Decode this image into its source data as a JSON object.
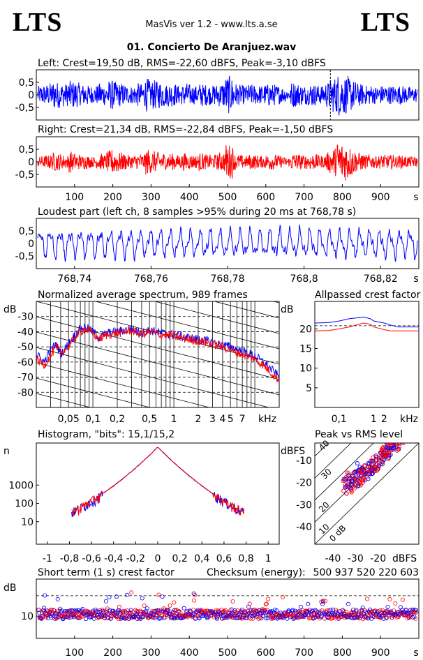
{
  "header": {
    "logo_left": "LTS",
    "logo_right": "LTS",
    "app_title": "MasVis ver 1.2 - www.lts.a.se",
    "file_title": "01. Concierto De Aranjuez.wav"
  },
  "colors": {
    "left": "#0000ff",
    "right": "#ff0000",
    "axis": "#000000"
  },
  "chart_data": [
    {
      "type": "line",
      "id": "left-waveform",
      "title": "Left: Crest=19,50 dB, RMS=-22,60 dBFS, Peak=-3,10 dBFS",
      "yticks": [
        "0,5",
        "0",
        "-0,5"
      ],
      "ylim": [
        -1,
        1
      ],
      "xlim": [
        0,
        1000
      ],
      "marker_x": 768.78,
      "envelope": [
        0.38,
        0.42,
        0.45,
        0.5,
        0.62,
        0.55,
        0.5,
        0.48,
        0.6,
        0.58,
        0.52,
        0.45,
        0.5,
        0.4,
        0.35,
        0.42,
        0.5,
        0.45,
        0.6,
        0.62,
        0.55,
        0.5,
        0.48,
        0.4,
        0.38,
        0.42,
        0.5,
        0.45,
        0.7,
        0.6,
        0.62,
        0.58,
        0.55,
        0.45,
        0.5,
        0.48,
        0.4,
        0.42,
        0.5,
        0.45,
        0.4,
        0.38,
        0.5,
        0.45,
        0.42,
        0.4,
        0.45,
        0.5,
        0.55,
        0.8,
        0.75,
        0.5,
        0.42,
        0.4,
        0.38,
        0.45,
        0.42,
        0.4,
        0.38,
        0.45,
        0.5,
        0.45,
        0.4,
        0.35,
        0.3,
        0.25,
        0.55,
        0.5,
        0.45,
        0.4,
        0.42,
        0.5,
        0.45,
        0.4,
        0.38,
        0.55,
        0.65,
        0.75,
        0.9,
        0.85,
        0.8,
        0.7,
        0.6,
        0.5,
        0.45,
        0.4,
        0.42,
        0.38,
        0.35,
        0.4,
        0.42,
        0.38,
        0.4,
        0.35,
        0.4,
        0.38,
        0.35,
        0.3,
        0.32,
        0.3
      ]
    },
    {
      "type": "line",
      "id": "right-waveform",
      "title": "Right: Crest=21,34 dB, RMS=-22,84 dBFS, Peak=-1,50 dBFS",
      "yticks": [
        "0,5",
        "0",
        "-0,5"
      ],
      "ylim": [
        -1,
        1
      ],
      "xlim": [
        0,
        1000
      ],
      "xticks": [
        "100",
        "200",
        "300",
        "400",
        "500",
        "600",
        "700",
        "800",
        "900"
      ],
      "xunit": "s",
      "envelope": [
        0.22,
        0.25,
        0.28,
        0.32,
        0.4,
        0.35,
        0.3,
        0.28,
        0.45,
        0.38,
        0.32,
        0.28,
        0.3,
        0.25,
        0.22,
        0.28,
        0.35,
        0.3,
        0.45,
        0.55,
        0.48,
        0.4,
        0.35,
        0.3,
        0.28,
        0.3,
        0.38,
        0.32,
        0.55,
        0.48,
        0.45,
        0.42,
        0.4,
        0.32,
        0.38,
        0.35,
        0.28,
        0.3,
        0.38,
        0.32,
        0.3,
        0.28,
        0.38,
        0.32,
        0.3,
        0.28,
        0.32,
        0.38,
        0.42,
        0.75,
        0.7,
        0.35,
        0.3,
        0.28,
        0.25,
        0.32,
        0.3,
        0.28,
        0.25,
        0.3,
        0.35,
        0.32,
        0.28,
        0.25,
        0.2,
        0.18,
        0.38,
        0.35,
        0.32,
        0.28,
        0.3,
        0.35,
        0.32,
        0.28,
        0.25,
        0.4,
        0.5,
        0.6,
        0.9,
        0.85,
        0.8,
        0.65,
        0.5,
        0.4,
        0.35,
        0.3,
        0.32,
        0.28,
        0.25,
        0.28,
        0.3,
        0.28,
        0.3,
        0.25,
        0.28,
        0.26,
        0.25,
        0.22,
        0.22,
        0.2
      ]
    },
    {
      "type": "line",
      "id": "loudest-part",
      "title": "Loudest part (left  ch, 8 samples >95% during 20 ms at 768,78 s)",
      "yticks": [
        "0,5",
        "0",
        "-0,5"
      ],
      "ylim": [
        -1,
        1
      ],
      "xlim": [
        768.73,
        768.83
      ],
      "xticks": [
        "768,74",
        "768,76",
        "768,78",
        "768,8",
        "768,82"
      ],
      "xunit": "s"
    },
    {
      "type": "line",
      "id": "average-spectrum",
      "title": "Normalized average spectrum, 989 frames",
      "yunit": "dB",
      "yticks": [
        "-30",
        "-40",
        "-50",
        "-60",
        "-70",
        "-80"
      ],
      "ylim": [
        -90,
        -20
      ],
      "xlim": [
        0.02,
        20
      ],
      "xscale": "log",
      "xticks": [
        "0,05",
        "0,1",
        "0,2",
        "0,5",
        "1",
        "2",
        "3",
        "4",
        "5",
        "7"
      ],
      "xunit": "kHz",
      "series": [
        {
          "x": [
            0.02,
            0.025,
            0.03,
            0.035,
            0.04,
            0.05,
            0.06,
            0.07,
            0.08,
            0.1,
            0.12,
            0.15,
            0.2,
            0.25,
            0.3,
            0.4,
            0.5,
            0.7,
            1,
            1.5,
            2,
            3,
            4,
            5,
            7,
            10,
            14,
            20
          ],
          "values": [
            -55,
            -60,
            -52,
            -48,
            -55,
            -48,
            -42,
            -38,
            -37,
            -40,
            -44,
            -41,
            -40,
            -39,
            -38,
            -41,
            -39,
            -41,
            -42,
            -44,
            -45,
            -47,
            -49,
            -50,
            -53,
            -56,
            -62,
            -70
          ]
        },
        {
          "x": [
            0.02,
            0.025,
            0.03,
            0.035,
            0.04,
            0.05,
            0.06,
            0.07,
            0.08,
            0.1,
            0.12,
            0.15,
            0.2,
            0.25,
            0.3,
            0.4,
            0.5,
            0.7,
            1,
            1.5,
            2,
            3,
            4,
            5,
            7,
            10,
            14,
            20
          ],
          "values": [
            -58,
            -62,
            -56,
            -50,
            -54,
            -50,
            -44,
            -40,
            -38,
            -41,
            -45,
            -42,
            -41,
            -40,
            -39,
            -42,
            -40,
            -42,
            -43,
            -45,
            -46,
            -48,
            -50,
            -52,
            -55,
            -58,
            -64,
            -72
          ]
        }
      ]
    },
    {
      "type": "line",
      "id": "allpassed-crest",
      "title": "Allpassed crest factor",
      "yunit": "dB",
      "yticks": [
        "20",
        "15",
        "10",
        "5"
      ],
      "ylim": [
        0,
        27
      ],
      "xlim": [
        0.02,
        20
      ],
      "xscale": "log",
      "xticks": [
        "0,1",
        "1",
        "2"
      ],
      "xunit": "kHz",
      "series": [
        {
          "x": [
            0.02,
            0.05,
            0.1,
            0.2,
            0.5,
            0.8,
            1,
            2,
            3,
            5,
            20
          ],
          "values": [
            21.5,
            21.6,
            22,
            22.6,
            23,
            22.6,
            22,
            21.5,
            21,
            20.5,
            20.5
          ]
        },
        {
          "x": [
            0.02,
            0.05,
            0.1,
            0.2,
            0.5,
            0.8,
            1,
            2,
            3,
            5,
            20
          ],
          "values": [
            19.5,
            19.6,
            20,
            20.5,
            21.5,
            21.2,
            20.5,
            19.8,
            19.5,
            19.5,
            19.5
          ]
        }
      ]
    },
    {
      "type": "line",
      "id": "histogram",
      "title": "Histogram, \"bits\": 15,1/15,2",
      "yunit": "n",
      "yscale": "log",
      "yticks": [
        "1000",
        "100",
        "10"
      ],
      "xlim": [
        -1.1,
        1.1
      ],
      "xticks": [
        "-1",
        "-0,8",
        "-0,6",
        "-0,4",
        "-0,2",
        "0",
        "0,2",
        "0,4",
        "0,6",
        "0,8",
        "1"
      ]
    },
    {
      "type": "scatter",
      "id": "peak-vs-rms",
      "title": "Peak vs RMS level",
      "yunit": "dBFS",
      "yticks": [
        "-10",
        "-20",
        "-30",
        "-40"
      ],
      "ylim": [
        -48,
        -2
      ],
      "xlim": [
        -48,
        -2
      ],
      "xticks": [
        "-40",
        "-30",
        "-20"
      ],
      "xunit": "dBFS",
      "diagonal_labels": [
        "40",
        "30",
        "20",
        "10",
        "0 dB"
      ]
    },
    {
      "type": "scatter",
      "id": "short-term-crest",
      "title": "Short term (1 s) crest factor",
      "checksum_label": "Checksum (energy):",
      "checksum_value": "500 937 520 220 603",
      "yunit": "dB",
      "yticks": [
        "10"
      ],
      "xlim": [
        0,
        1000
      ],
      "xticks": [
        "100",
        "200",
        "300",
        "400",
        "500",
        "600",
        "700",
        "800",
        "900"
      ],
      "xunit": "s"
    }
  ]
}
